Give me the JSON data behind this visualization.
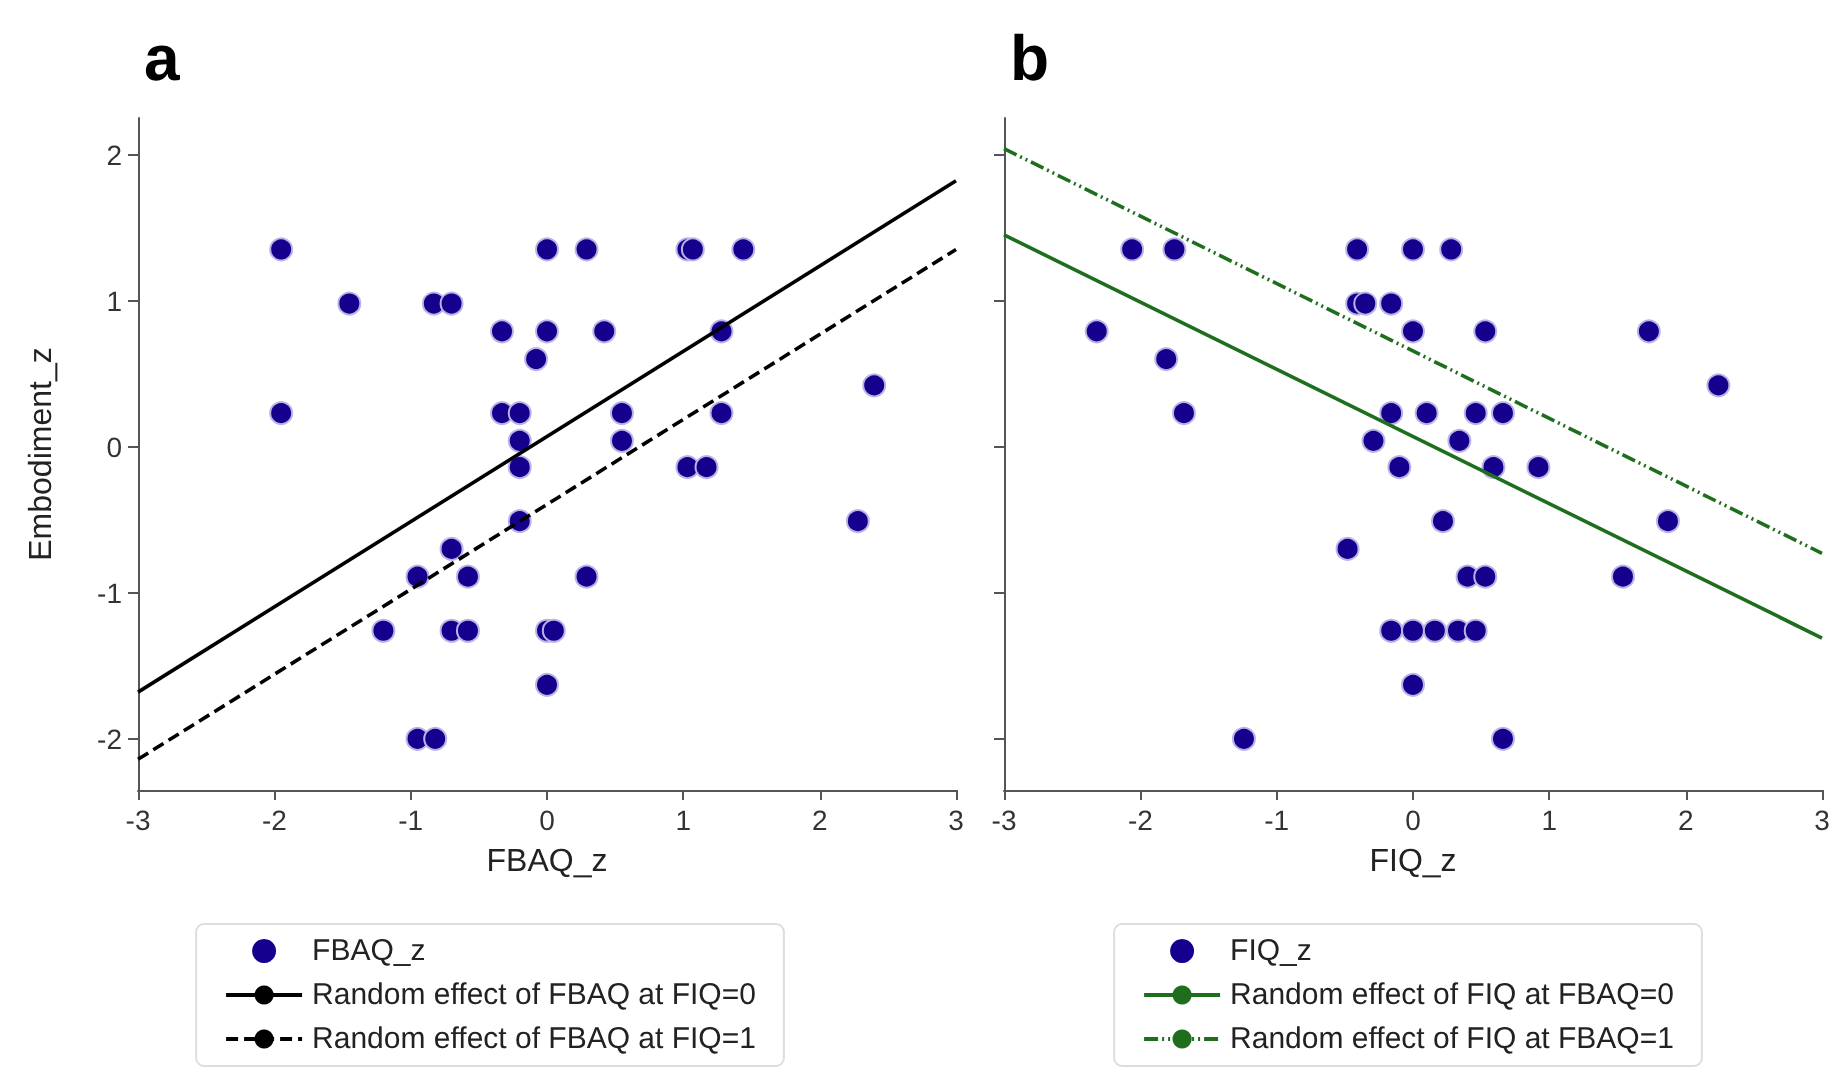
{
  "chart_data": [
    {
      "type": "scatter",
      "title": "a",
      "xlabel": "FBAQ_z",
      "ylabel": "Embodiment_z",
      "xlim": [
        -3,
        3
      ],
      "ylim": [
        -2.35,
        2.25
      ],
      "xticks": [
        -3,
        -2,
        -1,
        0,
        1,
        2,
        3
      ],
      "yticks": [
        -2,
        -1,
        0,
        1,
        2
      ],
      "grid": false,
      "legend": "bottom",
      "series": [
        {
          "name": "FBAQ_z",
          "marker": "circle",
          "color": "#14008c",
          "x": [
            -1.95,
            -1.45,
            -0.83,
            -0.7,
            -0.33,
            0.0,
            0.42,
            -0.08,
            0.0,
            0.29,
            1.03,
            1.07,
            1.44,
            1.28,
            2.4,
            -1.95,
            -0.33,
            -0.2,
            0.55,
            1.28,
            -0.2,
            0.55,
            -0.2,
            1.03,
            1.17,
            -0.2,
            2.28,
            -0.7,
            -0.95,
            -0.58,
            0.29,
            -1.2,
            -0.7,
            -0.58,
            0.0,
            0.05,
            0.0,
            -0.95,
            -0.82
          ],
          "values": [
            1.35,
            0.98,
            0.98,
            0.98,
            0.79,
            0.79,
            0.79,
            0.6,
            1.35,
            1.35,
            1.35,
            1.35,
            1.35,
            0.79,
            0.42,
            0.23,
            0.23,
            0.23,
            0.23,
            0.23,
            0.04,
            0.04,
            -0.14,
            -0.14,
            -0.14,
            -0.51,
            -0.51,
            -0.7,
            -0.89,
            -0.89,
            -0.89,
            -1.26,
            -1.26,
            -1.26,
            -1.26,
            -1.26,
            -1.63,
            -2.0,
            -2.0
          ]
        },
        {
          "name": "Random effect of FBAQ at FIQ=0",
          "type": "line",
          "marker": "none",
          "color": "#000000",
          "line_style": "solid",
          "x": [
            -3,
            3
          ],
          "values": [
            -1.68,
            1.82
          ]
        },
        {
          "name": "Random effect of FBAQ at FIQ=1",
          "type": "line",
          "marker": "none",
          "color": "#000000",
          "line_style": "dashed",
          "x": [
            -3,
            3
          ],
          "values": [
            -2.14,
            1.35
          ]
        }
      ]
    },
    {
      "type": "scatter",
      "title": "b",
      "xlabel": "FIQ_z",
      "xlim": [
        -3,
        3
      ],
      "ylim": [
        -2.35,
        2.25
      ],
      "xticks": [
        -3,
        -2,
        -1,
        0,
        1,
        2,
        3
      ],
      "yticks": [
        -2,
        -1,
        0,
        1,
        2
      ],
      "tick_labels": "x",
      "grid": false,
      "legend": "bottom",
      "series": [
        {
          "name": "FIQ_z",
          "marker": "circle",
          "color": "#14008c",
          "x": [
            -2.06,
            -1.75,
            -0.41,
            0.0,
            0.28,
            -0.41,
            -0.35,
            -0.16,
            -2.32,
            0.0,
            0.53,
            1.73,
            -1.81,
            2.24,
            -1.68,
            -0.16,
            0.1,
            0.46,
            0.66,
            -0.29,
            0.34,
            -0.1,
            0.59,
            0.92,
            0.22,
            1.87,
            -0.48,
            0.4,
            0.53,
            1.54,
            -0.16,
            0.0,
            0.16,
            0.33,
            0.46,
            0.0,
            -1.24,
            0.66
          ],
          "values": [
            1.35,
            1.35,
            1.35,
            1.35,
            1.35,
            0.98,
            0.98,
            0.98,
            0.79,
            0.79,
            0.79,
            0.79,
            0.6,
            0.42,
            0.23,
            0.23,
            0.23,
            0.23,
            0.23,
            0.04,
            0.04,
            -0.14,
            -0.14,
            -0.14,
            -0.51,
            -0.51,
            -0.7,
            -0.89,
            -0.89,
            -0.89,
            -1.26,
            -1.26,
            -1.26,
            -1.26,
            -1.26,
            -1.63,
            -2.0,
            -2.0
          ]
        },
        {
          "name": "Random effect of FIQ at FBAQ=0",
          "type": "line",
          "marker": "none",
          "color": "#1e6e1e",
          "line_style": "solid",
          "x": [
            -3,
            3
          ],
          "values": [
            1.45,
            -1.31
          ]
        },
        {
          "name": "Random effect of FIQ at FBAQ=1",
          "type": "line",
          "marker": "none",
          "color": "#1e6e1e",
          "line_style": "dashdot",
          "x": [
            -3,
            3
          ],
          "values": [
            2.04,
            -0.73
          ]
        }
      ]
    }
  ]
}
